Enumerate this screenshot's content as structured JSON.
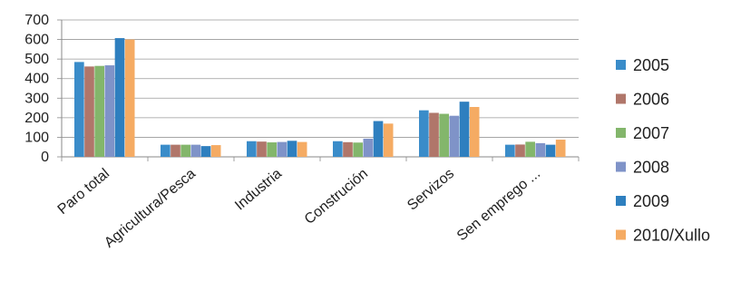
{
  "chart_data": {
    "type": "bar",
    "title": "",
    "xlabel": "",
    "ylabel": "",
    "ylim": [
      0,
      700
    ],
    "yticks": [
      0,
      100,
      200,
      300,
      400,
      500,
      600,
      700
    ],
    "grid": true,
    "legend_position": "right",
    "categories": [
      "Paro total",
      "Agricultura/Pesca",
      "Industria",
      "Construción",
      "Servizos",
      "Sen emprego ..."
    ],
    "series": [
      {
        "name": "2005",
        "color": "#3a8cc9",
        "values": [
          485,
          62,
          80,
          80,
          238,
          62
        ]
      },
      {
        "name": "2006",
        "color": "#b0766a",
        "values": [
          462,
          62,
          78,
          75,
          225,
          63
        ]
      },
      {
        "name": "2007",
        "color": "#83b66b",
        "values": [
          465,
          62,
          74,
          73,
          220,
          77
        ]
      },
      {
        "name": "2008",
        "color": "#7f93c8",
        "values": [
          468,
          62,
          76,
          93,
          210,
          70
        ]
      },
      {
        "name": "2009",
        "color": "#2e7fbf",
        "values": [
          607,
          55,
          82,
          183,
          282,
          62
        ]
      },
      {
        "name": "2010/Xullo",
        "color": "#f5ab63",
        "values": [
          600,
          60,
          76,
          170,
          255,
          88
        ]
      }
    ]
  }
}
